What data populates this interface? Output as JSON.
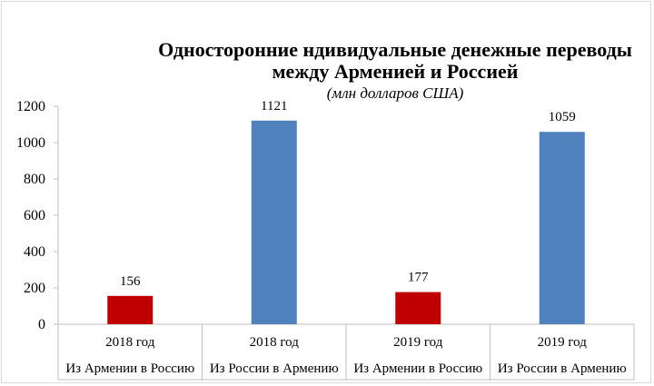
{
  "chart_data": {
    "type": "bar",
    "title_line1": "Односторонние ндивидуальные денежные переводы",
    "title_line2": "между Арменией и Россией",
    "subtitle": "(млн долларов США)",
    "xlabel": "",
    "ylabel": "",
    "ylim": [
      0,
      1200
    ],
    "yticks": [
      0,
      200,
      400,
      600,
      800,
      1000,
      1200
    ],
    "grid": false,
    "categories": [
      {
        "year": "2018 год",
        "direction": "Из Армении в Россию"
      },
      {
        "year": "2018 год",
        "direction": "Из России в Армению"
      },
      {
        "year": "2019 год",
        "direction": "Из Армении в Россию"
      },
      {
        "year": "2019 год",
        "direction": "Из России в Армению"
      }
    ],
    "values": [
      156,
      1121,
      177,
      1059
    ],
    "colors": [
      "#c00000",
      "#4f81bd",
      "#c00000",
      "#4f81bd"
    ]
  }
}
